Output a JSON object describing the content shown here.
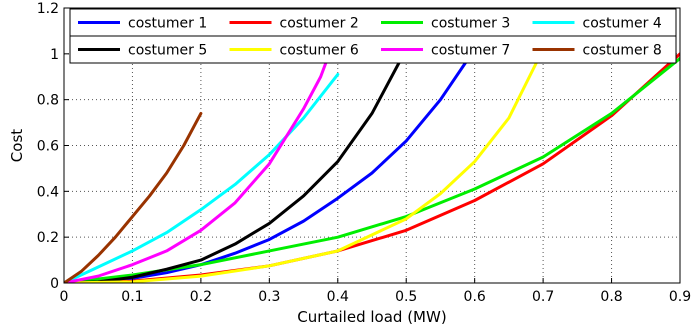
{
  "chart_data": {
    "type": "line",
    "xlabel": "Curtailed load (MW)",
    "ylabel": "Cost",
    "xlim": [
      0,
      0.9
    ],
    "ylim": [
      0,
      1.2
    ],
    "xticks": [
      0,
      0.1,
      0.2,
      0.3,
      0.4,
      0.5,
      0.6,
      0.7,
      0.8,
      0.9
    ],
    "yticks": [
      0,
      0.2,
      0.4,
      0.6,
      0.8,
      1,
      1.2
    ],
    "xtick_labels": [
      "0",
      "0.1",
      "0.2",
      "0.3",
      "0.4",
      "0.5",
      "0.6",
      "0.7",
      "0.8",
      "0.9"
    ],
    "ytick_labels": [
      "0",
      "0.2",
      "0.4",
      "0.6",
      "0.8",
      "1",
      "1.2"
    ],
    "grid": true,
    "legend_position": "top",
    "series": [
      {
        "name": "costumer 1",
        "color": "#0000ff",
        "x": [
          0,
          0.05,
          0.1,
          0.15,
          0.2,
          0.25,
          0.3,
          0.35,
          0.4,
          0.45,
          0.5,
          0.55,
          0.6
        ],
        "y": [
          0,
          0.003,
          0.02,
          0.045,
          0.08,
          0.13,
          0.19,
          0.27,
          0.37,
          0.48,
          0.62,
          0.8,
          1.02
        ]
      },
      {
        "name": "costumer 2",
        "color": "#ff0000",
        "x": [
          0,
          0.1,
          0.2,
          0.3,
          0.4,
          0.5,
          0.6,
          0.7,
          0.8,
          0.9
        ],
        "y": [
          0,
          0.008,
          0.035,
          0.075,
          0.14,
          0.23,
          0.36,
          0.52,
          0.73,
          1.0
        ]
      },
      {
        "name": "costumer 3",
        "color": "#00ee00",
        "x": [
          0,
          0.1,
          0.2,
          0.3,
          0.4,
          0.5,
          0.6,
          0.7,
          0.8,
          0.9
        ],
        "y": [
          0,
          0.035,
          0.08,
          0.14,
          0.2,
          0.29,
          0.41,
          0.55,
          0.74,
          0.98
        ]
      },
      {
        "name": "costumer 4",
        "color": "#00ffff",
        "x": [
          0,
          0.05,
          0.1,
          0.15,
          0.2,
          0.25,
          0.3,
          0.35,
          0.4
        ],
        "y": [
          0,
          0.07,
          0.14,
          0.22,
          0.32,
          0.43,
          0.56,
          0.72,
          0.91
        ]
      },
      {
        "name": "costumer 5",
        "color": "#000000",
        "x": [
          0,
          0.05,
          0.1,
          0.15,
          0.2,
          0.25,
          0.3,
          0.35,
          0.4,
          0.45,
          0.5
        ],
        "y": [
          0,
          0.005,
          0.025,
          0.06,
          0.1,
          0.17,
          0.26,
          0.38,
          0.53,
          0.74,
          1.02
        ]
      },
      {
        "name": "costumer 6",
        "color": "#ffff00",
        "x": [
          0,
          0.1,
          0.2,
          0.3,
          0.4,
          0.5,
          0.55,
          0.6,
          0.65,
          0.7
        ],
        "y": [
          0,
          0.005,
          0.03,
          0.075,
          0.14,
          0.28,
          0.39,
          0.53,
          0.72,
          1.02
        ]
      },
      {
        "name": "costumer 7",
        "color": "#ff00ff",
        "x": [
          0,
          0.05,
          0.1,
          0.15,
          0.2,
          0.25,
          0.3,
          0.35,
          0.375,
          0.39
        ],
        "y": [
          0,
          0.03,
          0.08,
          0.14,
          0.23,
          0.35,
          0.52,
          0.76,
          0.9,
          1.02
        ]
      },
      {
        "name": "costumer 8",
        "color": "#993300",
        "x": [
          0,
          0.025,
          0.05,
          0.075,
          0.1,
          0.125,
          0.15,
          0.175,
          0.2
        ],
        "y": [
          0,
          0.05,
          0.12,
          0.2,
          0.29,
          0.38,
          0.48,
          0.6,
          0.74
        ]
      }
    ]
  }
}
